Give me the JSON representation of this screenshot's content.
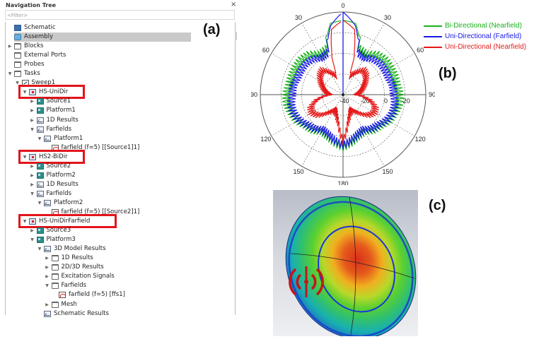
{
  "nav_tree": {
    "title": "Navigation Tree",
    "close_icon": "×",
    "filter_placeholder": "<Filter>",
    "items": [
      {
        "label": "Schematic",
        "icon": "schematic-icon",
        "depth": 0,
        "expander": "none",
        "selected": false
      },
      {
        "label": "Assembly",
        "icon": "assembly-icon",
        "depth": 0,
        "expander": "none",
        "selected": true
      },
      {
        "label": "Blocks",
        "icon": "folder-icon",
        "depth": 0,
        "expander": "collapsed",
        "selected": false
      },
      {
        "label": "External Ports",
        "icon": "folder-icon",
        "depth": 0,
        "expander": "none",
        "selected": false
      },
      {
        "label": "Probes",
        "icon": "folder-icon",
        "depth": 0,
        "expander": "none",
        "selected": false
      },
      {
        "label": "Tasks",
        "icon": "folder-icon",
        "depth": 0,
        "expander": "expanded",
        "selected": false
      },
      {
        "label": "Sweep1",
        "icon": "sweep-icon",
        "depth": 1,
        "expander": "expanded",
        "selected": false
      },
      {
        "label": "HS-UniDir",
        "icon": "task-icon",
        "depth": 2,
        "expander": "expanded",
        "selected": false,
        "highlighted": true
      },
      {
        "label": "Source1",
        "icon": "component-icon",
        "depth": 3,
        "expander": "collapsed",
        "selected": false
      },
      {
        "label": "Platform1",
        "icon": "component-icon",
        "depth": 3,
        "expander": "collapsed",
        "selected": false
      },
      {
        "label": "1D Results",
        "icon": "chart-icon",
        "depth": 3,
        "expander": "collapsed",
        "selected": false
      },
      {
        "label": "Farfields",
        "icon": "chart-icon",
        "depth": 3,
        "expander": "expanded",
        "selected": false
      },
      {
        "label": "Platform1",
        "icon": "chart-icon",
        "depth": 4,
        "expander": "expanded",
        "selected": false
      },
      {
        "label": "farfield (f=5) [[Source1]1]",
        "icon": "farfield-icon",
        "depth": 5,
        "expander": "none",
        "selected": false
      },
      {
        "label": "HS2-BiDir",
        "icon": "task-icon",
        "depth": 2,
        "expander": "expanded",
        "selected": false,
        "highlighted": true
      },
      {
        "label": "Source2",
        "icon": "component-icon",
        "depth": 3,
        "expander": "collapsed",
        "selected": false
      },
      {
        "label": "Platform2",
        "icon": "component-icon",
        "depth": 3,
        "expander": "collapsed",
        "selected": false
      },
      {
        "label": "1D Results",
        "icon": "chart-icon",
        "depth": 3,
        "expander": "collapsed",
        "selected": false
      },
      {
        "label": "Farfields",
        "icon": "chart-icon",
        "depth": 3,
        "expander": "expanded",
        "selected": false
      },
      {
        "label": "Platform2",
        "icon": "chart-icon",
        "depth": 4,
        "expander": "expanded",
        "selected": false
      },
      {
        "label": "farfield (f=5) [[Source2]1]",
        "icon": "farfield-icon",
        "depth": 5,
        "expander": "none",
        "selected": false
      },
      {
        "label": "HS-UniDirFarfield",
        "icon": "task-icon",
        "depth": 2,
        "expander": "expanded",
        "selected": false,
        "highlighted": true
      },
      {
        "label": "Source3",
        "icon": "component-icon",
        "depth": 3,
        "expander": "collapsed",
        "selected": false
      },
      {
        "label": "Platform3",
        "icon": "component-icon",
        "depth": 3,
        "expander": "expanded",
        "selected": false
      },
      {
        "label": "3D Model Results",
        "icon": "chart-icon",
        "depth": 4,
        "expander": "expanded",
        "selected": false
      },
      {
        "label": "1D Results",
        "icon": "folder-icon",
        "depth": 5,
        "expander": "collapsed",
        "selected": false
      },
      {
        "label": "2D/3D Results",
        "icon": "folder-icon",
        "depth": 5,
        "expander": "collapsed",
        "selected": false
      },
      {
        "label": "Excitation Signals",
        "icon": "folder-icon",
        "depth": 5,
        "expander": "collapsed",
        "selected": false
      },
      {
        "label": "Farfields",
        "icon": "folder-icon",
        "depth": 5,
        "expander": "expanded",
        "selected": false
      },
      {
        "label": "farfield (f=5) [ffs1]",
        "icon": "farfield-icon",
        "depth": 6,
        "expander": "none",
        "selected": false
      },
      {
        "label": "Mesh",
        "icon": "folder-icon",
        "depth": 5,
        "expander": "collapsed",
        "selected": false
      },
      {
        "label": "Schematic Results",
        "icon": "chart-icon",
        "depth": 4,
        "expander": "none",
        "selected": false
      }
    ],
    "highlight_color": "#e3141b"
  },
  "panel_labels": {
    "a": "(a)",
    "b": "(b)",
    "c": "(c)"
  },
  "chart_data": {
    "type": "polar",
    "title": "",
    "angle_ticks": [
      "0",
      "30",
      "60",
      "90",
      "120",
      "150",
      "180",
      "150",
      "120",
      "90",
      "60",
      "30"
    ],
    "angle_tick_positions_deg": [
      0,
      30,
      60,
      90,
      120,
      150,
      180,
      210,
      240,
      270,
      300,
      330
    ],
    "radial_ticks": [
      "-40",
      "-20",
      "0",
      "20"
    ],
    "radial_range": [
      -40,
      40
    ],
    "grid": true,
    "legend_position": "right",
    "series": [
      {
        "name": "Bi-Directional (Nearfield)",
        "color": "#19b21b",
        "angles_deg": [
          0,
          10,
          20,
          30,
          40,
          50,
          60,
          70,
          80,
          90,
          100,
          110,
          120,
          130,
          140,
          150,
          160,
          170,
          180
        ],
        "values_db": [
          32,
          30,
          8,
          6,
          12,
          14,
          14,
          14,
          14,
          16,
          16,
          14,
          12,
          8,
          6,
          2,
          4,
          8,
          12
        ]
      },
      {
        "name": "Uni-Directional (Farfield)",
        "color": "#1a1ae6",
        "angles_deg": [
          0,
          10,
          20,
          30,
          40,
          50,
          60,
          70,
          80,
          90,
          100,
          110,
          120,
          130,
          140,
          150,
          160,
          170,
          180
        ],
        "values_db": [
          40,
          28,
          4,
          2,
          6,
          8,
          8,
          8,
          10,
          10,
          12,
          12,
          10,
          6,
          4,
          0,
          2,
          6,
          10
        ]
      },
      {
        "name": "Uni-Directional (Nearfield)",
        "color": "#e61a1a",
        "angles_deg": [
          0,
          10,
          20,
          30,
          40,
          50,
          60,
          70,
          80,
          90,
          100,
          110,
          120,
          130,
          140,
          150,
          160,
          170,
          180
        ],
        "values_db": [
          32,
          24,
          -20,
          -14,
          -8,
          -10,
          -14,
          -18,
          -22,
          -26,
          -14,
          -6,
          -4,
          -8,
          -16,
          -22,
          -20,
          -12,
          6
        ]
      }
    ]
  },
  "view3d": {
    "description": "3D far-field surface with antenna source marker",
    "source_icon": "antenna-source-icon",
    "colors": {
      "hot": "#d8301a",
      "warm": "#f0b020",
      "mid": "#62d230",
      "cool": "#14b8b0",
      "cold": "#1840c8"
    }
  }
}
